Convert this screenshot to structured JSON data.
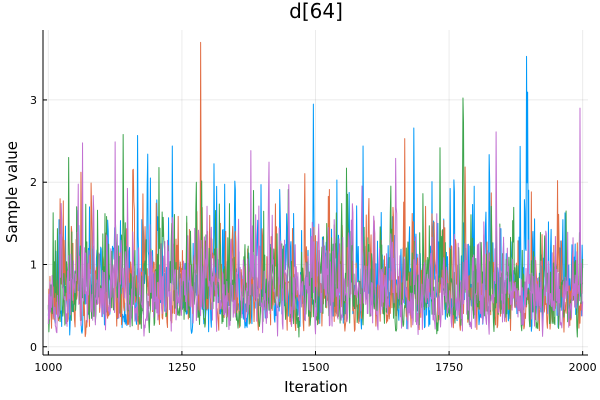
{
  "chart_data": {
    "type": "line",
    "title": "d[64]",
    "xlabel": "Iteration",
    "ylabel": "Sample value",
    "xlim": [
      990,
      2010
    ],
    "ylim": [
      -0.1,
      3.85
    ],
    "xticks": [
      1000,
      1250,
      1500,
      1750,
      2000
    ],
    "yticks": [
      0,
      1,
      2,
      3
    ],
    "grid": true,
    "legend": "none",
    "iterations": {
      "start": 1000,
      "end": 2000
    },
    "series": [
      {
        "color": "#009AFA",
        "seed": 11,
        "peak_x": 1895,
        "peak_y": 3.53
      },
      {
        "color": "#E26F46",
        "seed": 23,
        "peak_x": 1285,
        "peak_y": 3.7
      },
      {
        "color": "#3DA44D",
        "seed": 37,
        "peak_x": 1140,
        "peak_y": 2.58
      },
      {
        "color": "#C271D2",
        "seed": 53,
        "peak_x": 1995,
        "peak_y": 2.9
      }
    ]
  }
}
